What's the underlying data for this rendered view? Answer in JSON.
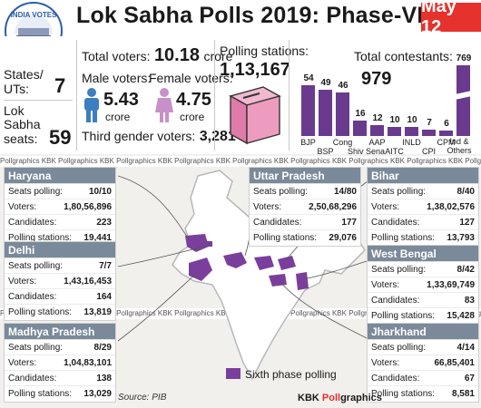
{
  "header": {
    "logo_top": "INDIA VOTES",
    "logo_year": "2019",
    "title": "Lok Sabha Polls 2019: Phase-VI",
    "date": "May 12"
  },
  "stats": {
    "states_label": "States/ UTs:",
    "states_label_l1": "States/",
    "states_label_l2": "UTs:",
    "states_value": "7",
    "seats_label_l1": "Lok",
    "seats_label_l2": "Sabha",
    "seats_label_l3": "seats:",
    "seats_value": "59",
    "total_voters_label": "Total voters:",
    "total_voters_value": "10.18",
    "total_voters_unit": "crore",
    "male_label": "Male voters:",
    "male_value": "5.43",
    "male_unit": "crore",
    "female_label": "Female voters:",
    "female_value": "4.75",
    "female_unit": "crore",
    "third_gender_label": "Third gender voters:",
    "third_gender_value": "3,281",
    "polling_stations_label": "Polling stations:",
    "polling_stations_value": "1,13,167",
    "contestants_label": "Total contestants:",
    "contestants_value": "979"
  },
  "chart_data": {
    "type": "bar",
    "title": "Total contestants: 979",
    "categories": [
      "BJP",
      "BSP",
      "Cong",
      "Shiv Sena",
      "AAP",
      "AITC",
      "INLD",
      "CPI",
      "CPM",
      "Ind & Others"
    ],
    "values": [
      54,
      49,
      46,
      16,
      12,
      10,
      10,
      7,
      6,
      769
    ],
    "color": "#6a3a8e",
    "axis_break_on_last_bar": true
  },
  "brand_strip": {
    "text": "Pollgraphics  KBK Pollgraphics  KBK Pollgraphics  KBK Pollgraphics  KBK Pollgraphics  KBK Pollgraphics  KBK Pollgraphics  KBK Pollgraphics  KBK Pollgraphics"
  },
  "states": {
    "haryana": {
      "name": "Haryana",
      "seats_label": "Seats polling:",
      "seats": "10/10",
      "voters_label": "Voters:",
      "voters": "1,80,56,896",
      "candidates_label": "Candidates:",
      "candidates": "223",
      "ps_label": "Polling stations:",
      "ps": "19,441"
    },
    "delhi": {
      "name": "Delhi",
      "seats_label": "Seats polling:",
      "seats": "7/7",
      "voters_label": "Voters:",
      "voters": "1,43,16,453",
      "candidates_label": "Candidates:",
      "candidates": "164",
      "ps_label": "Polling stations:",
      "ps": "13,819"
    },
    "mp": {
      "name": "Madhya Pradesh",
      "seats_label": "Seats polling:",
      "seats": "8/29",
      "voters_label": "Voters:",
      "voters": "1,04,83,101",
      "candidates_label": "Candidates:",
      "candidates": "138",
      "ps_label": "Polling stations:",
      "ps": "13,029"
    },
    "up": {
      "name": "Uttar Pradesh",
      "seats_label": "Seats polling:",
      "seats": "14/80",
      "voters_label": "Voters:",
      "voters": "2,50,68,296",
      "candidates_label": "Candidates:",
      "candidates": "177",
      "ps_label": "Polling stations:",
      "ps": "29,076"
    },
    "bihar": {
      "name": "Bihar",
      "seats_label": "Seats polling:",
      "seats": "8/40",
      "voters_label": "Voters:",
      "voters": "1,38,02,576",
      "candidates_label": "Candidates:",
      "candidates": "127",
      "ps_label": "Polling stations:",
      "ps": "13,793"
    },
    "wb": {
      "name": "West Bengal",
      "seats_label": "Seats polling:",
      "seats": "8/42",
      "voters_label": "Voters:",
      "voters": "1,33,69,749",
      "candidates_label": "Candidates:",
      "candidates": "83",
      "ps_label": "Polling stations:",
      "ps": "15,428"
    },
    "jharkhand": {
      "name": "Jharkhand",
      "seats_label": "Seats polling:",
      "seats": "4/14",
      "voters_label": "Voters:",
      "voters": "66,85,401",
      "candidates_label": "Candidates:",
      "candidates": "67",
      "ps_label": "Polling stations:",
      "ps": "8,581"
    }
  },
  "legend": {
    "label": "Sixth phase polling",
    "color": "#7a3f9c"
  },
  "footer": {
    "source": "Source: PIB",
    "credit_prefix": "KBK ",
    "credit_poll": "Poll",
    "credit_suffix": "graphics"
  }
}
